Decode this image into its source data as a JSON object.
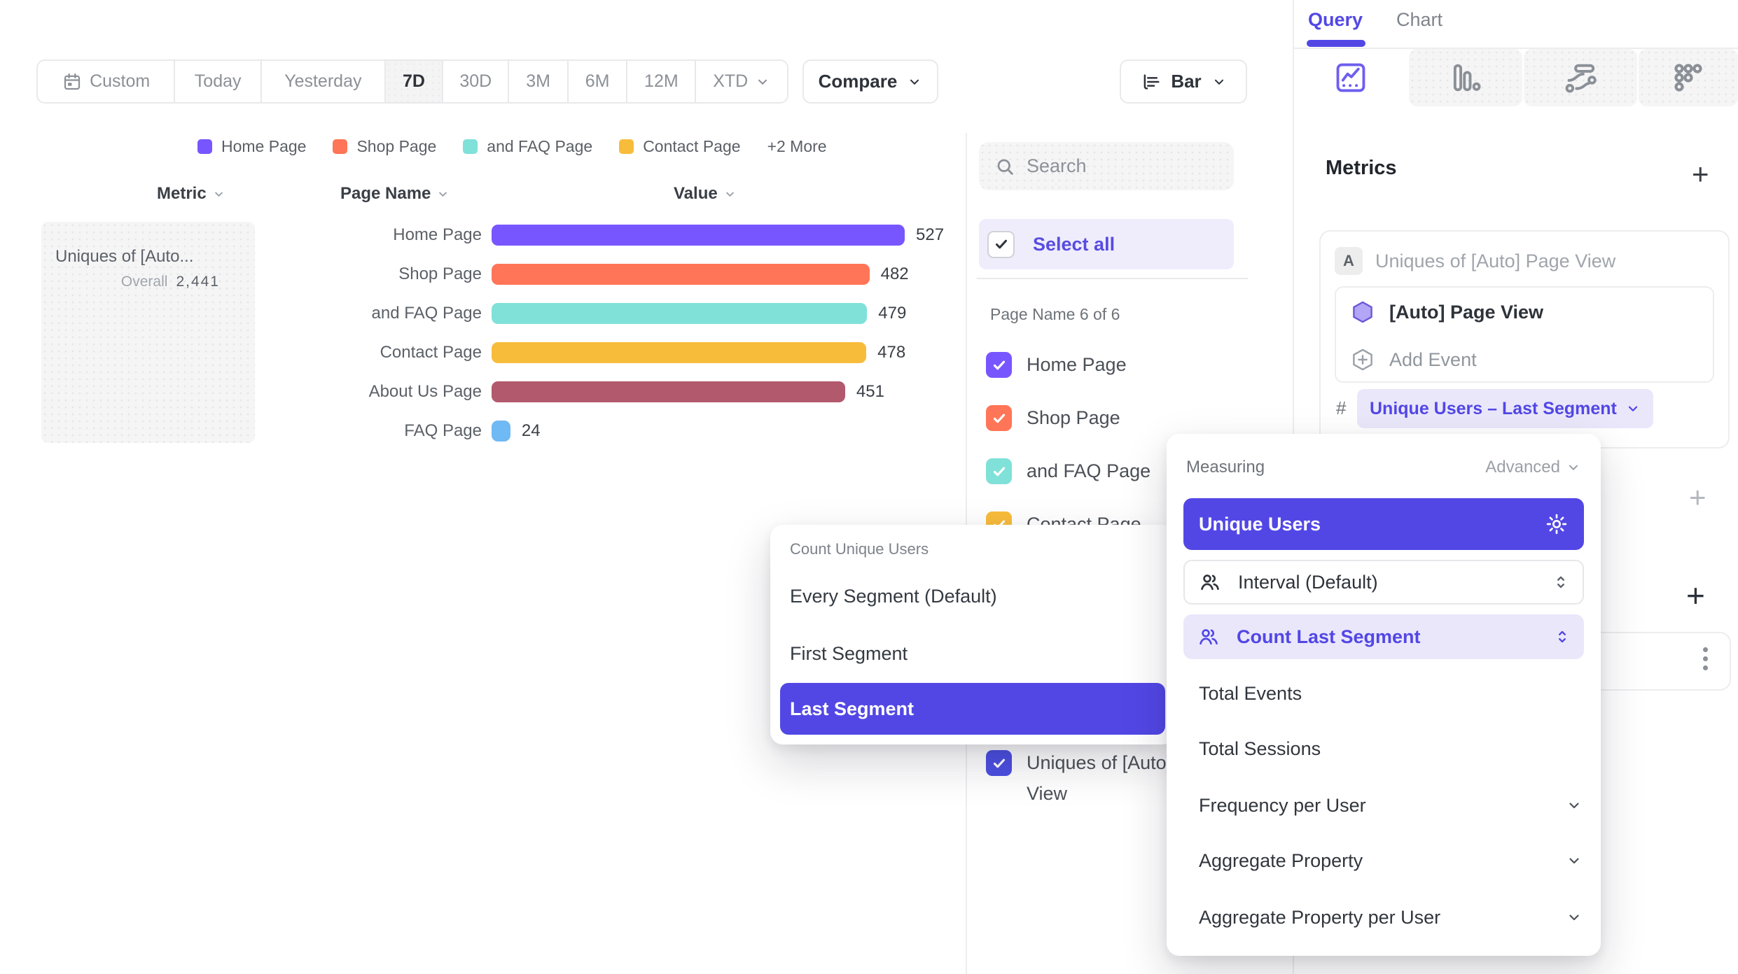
{
  "toolbar": {
    "date_ranges": [
      "Custom",
      "Today",
      "Yesterday",
      "7D",
      "30D",
      "3M",
      "6M",
      "12M",
      "XTD"
    ],
    "selected_range": "7D",
    "compare_label": "Compare",
    "chart_type_label": "Bar"
  },
  "legend": {
    "items": [
      {
        "label": "Home Page",
        "color": "#7856FF"
      },
      {
        "label": "Shop Page",
        "color": "#FF7557"
      },
      {
        "label": "and FAQ Page",
        "color": "#80E1D9"
      },
      {
        "label": "Contact Page",
        "color": "#F8BC3B"
      }
    ],
    "more_label": "+2 More"
  },
  "table": {
    "headers": [
      "Metric",
      "Page Name",
      "Value"
    ]
  },
  "metric_card": {
    "title": "Uniques of [Auto...",
    "overall_label": "Overall",
    "overall_value": "2,441"
  },
  "chart_data": {
    "type": "bar",
    "orientation": "horizontal",
    "title": "Uniques of [Auto] Page View",
    "categories": [
      "Home Page",
      "Shop Page",
      "and FAQ Page",
      "Contact Page",
      "About Us Page",
      "FAQ Page"
    ],
    "values": [
      527,
      482,
      479,
      478,
      451,
      24
    ],
    "colors": [
      "#7856FF",
      "#FF7557",
      "#80E1D9",
      "#F8BC3B",
      "#B2596E",
      "#6FB9F4"
    ],
    "xlim": [
      0,
      527
    ],
    "overall_total": 2441,
    "legend_position": "top"
  },
  "filter_panel": {
    "search_placeholder": "Search",
    "select_all_label": "Select all",
    "count_label": "Page Name 6 of 6",
    "items": [
      {
        "label": "Home Page",
        "color": "#7856FF",
        "checked": true
      },
      {
        "label": "Shop Page",
        "color": "#FF7557",
        "checked": true
      },
      {
        "label": "and FAQ Page",
        "color": "#80E1D9",
        "checked": true
      },
      {
        "label": "Contact Page",
        "color": "#F8BC3B",
        "checked": true
      },
      {
        "label": "Uniques of [Auto] Page View",
        "color": "#4C4FE2",
        "checked": true
      }
    ]
  },
  "segment_menu": {
    "title": "Count Unique Users",
    "items": [
      "Every Segment (Default)",
      "First Segment",
      "Last Segment"
    ],
    "selected": "Last Segment",
    "selected_color": "#5247E5"
  },
  "measuring_menu": {
    "title": "Measuring",
    "advanced_label": "Advanced",
    "selected_measure": "Unique Users",
    "interval_label": "Interval (Default)",
    "count_segment_label": "Count Last Segment",
    "plain_items": [
      "Total Events",
      "Total Sessions"
    ],
    "expandable_items": [
      "Frequency per User",
      "Aggregate Property",
      "Aggregate Property per User"
    ]
  },
  "query_panel": {
    "tabs": [
      "Query",
      "Chart"
    ],
    "active_tab": "Query",
    "metrics_title": "Metrics",
    "add_metric_label": "+",
    "metric_badge": "A",
    "metric_row_title": "Uniques of [Auto] Page View",
    "event_name": "[Auto] Page View",
    "add_event_label": "Add Event",
    "hash_symbol": "#",
    "measure_pill": "Unique Users – Last Segment",
    "accent_color": "#5247E5"
  }
}
